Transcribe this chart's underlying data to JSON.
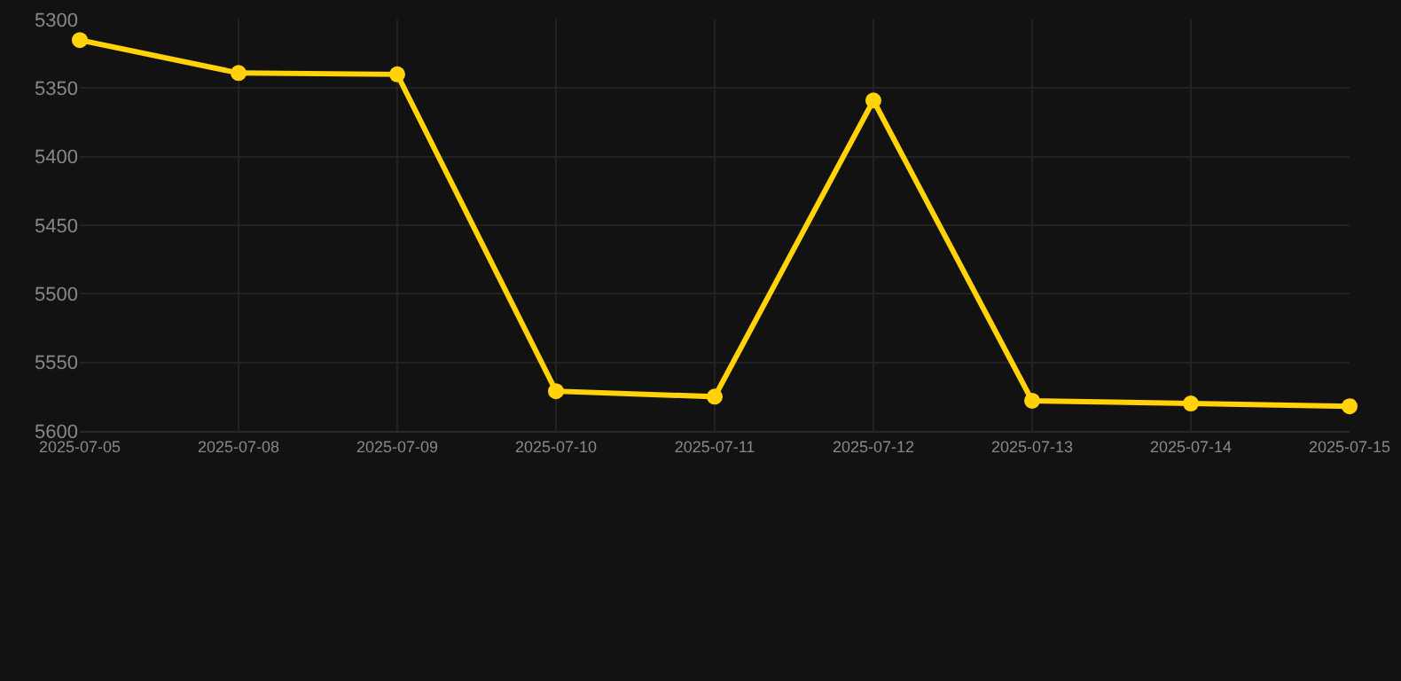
{
  "chart_data": {
    "type": "line",
    "categories": [
      "2025-07-05",
      "2025-07-08",
      "2025-07-09",
      "2025-07-10",
      "2025-07-11",
      "2025-07-12",
      "2025-07-13",
      "2025-07-14",
      "2025-07-15"
    ],
    "series": [
      {
        "color": "#ffd20a",
        "values": [
          5315,
          5339,
          5340,
          5571,
          5575,
          5359,
          5578,
          5580,
          5582
        ]
      }
    ],
    "ylim": [
      5600,
      5300
    ],
    "yticks": [
      5300,
      5350,
      5400,
      5450,
      5500,
      5550,
      5600
    ],
    "grid": true,
    "marker": "circle",
    "line_style": "solid"
  }
}
